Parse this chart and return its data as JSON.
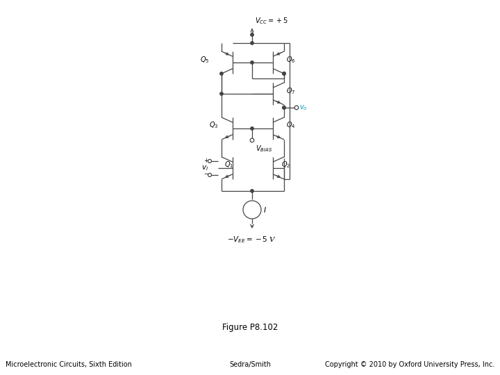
{
  "title": "Figure P8.102",
  "bottom_left": "Microelectronic Circuits, Sixth Edition",
  "bottom_center": "Sedra/Smith",
  "bottom_right": "Copyright © 2010 by Oxford University Press, Inc.",
  "vcc_label": "$V_{CC} = +5$",
  "vee_label": "$-V_{EE} = -5$ V",
  "vo_label": "$v_o$",
  "vbias_label": "$V_{BIAS}$",
  "vi_label": "$v_I$",
  "I_label": "$I$",
  "Q1_label": "$Q_1$",
  "Q2_label": "$Q_2$",
  "Q3_label": "$Q_3$",
  "Q4_label": "$Q_4$",
  "Q5_label": "$Q_5$",
  "Q6_label": "$Q_6$",
  "Q7_label": "$Q_7$",
  "line_color": "#444444",
  "text_color": "#000000",
  "vo_color": "#0099bb",
  "bg_color": "#ffffff"
}
